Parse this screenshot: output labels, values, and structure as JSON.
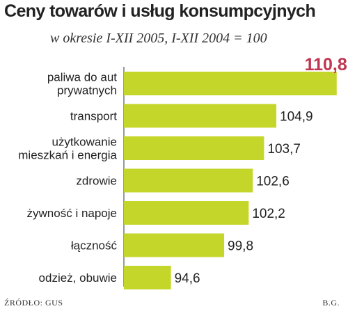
{
  "chart_data": {
    "type": "bar",
    "orientation": "horizontal",
    "title": "Ceny towarów i usług konsumpcyjnych",
    "subtitle": "w okresie I-XII 2005, I-XII 2004 = 100",
    "categories": [
      [
        "paliwa do aut",
        "prywatnych"
      ],
      [
        "transport"
      ],
      [
        "użytkowanie",
        "mieszkań i energia"
      ],
      [
        "zdrowie"
      ],
      [
        "żywność i napoje"
      ],
      [
        "łączność"
      ],
      [
        "odzież, obuwie"
      ]
    ],
    "values": [
      110.8,
      104.9,
      103.7,
      102.6,
      102.2,
      99.8,
      94.6
    ],
    "value_labels": [
      "110,8",
      "104,9",
      "103,7",
      "102,6",
      "102,2",
      "99,8",
      "94,6"
    ],
    "bar_color": "#c5d62a",
    "highlight_color": "#c0354f",
    "text_color": "#222222",
    "background": "#ffffff",
    "grid": false,
    "legend": "none"
  },
  "footer": {
    "source": "ŹRÓDŁO: GUS",
    "author": "B.G."
  }
}
